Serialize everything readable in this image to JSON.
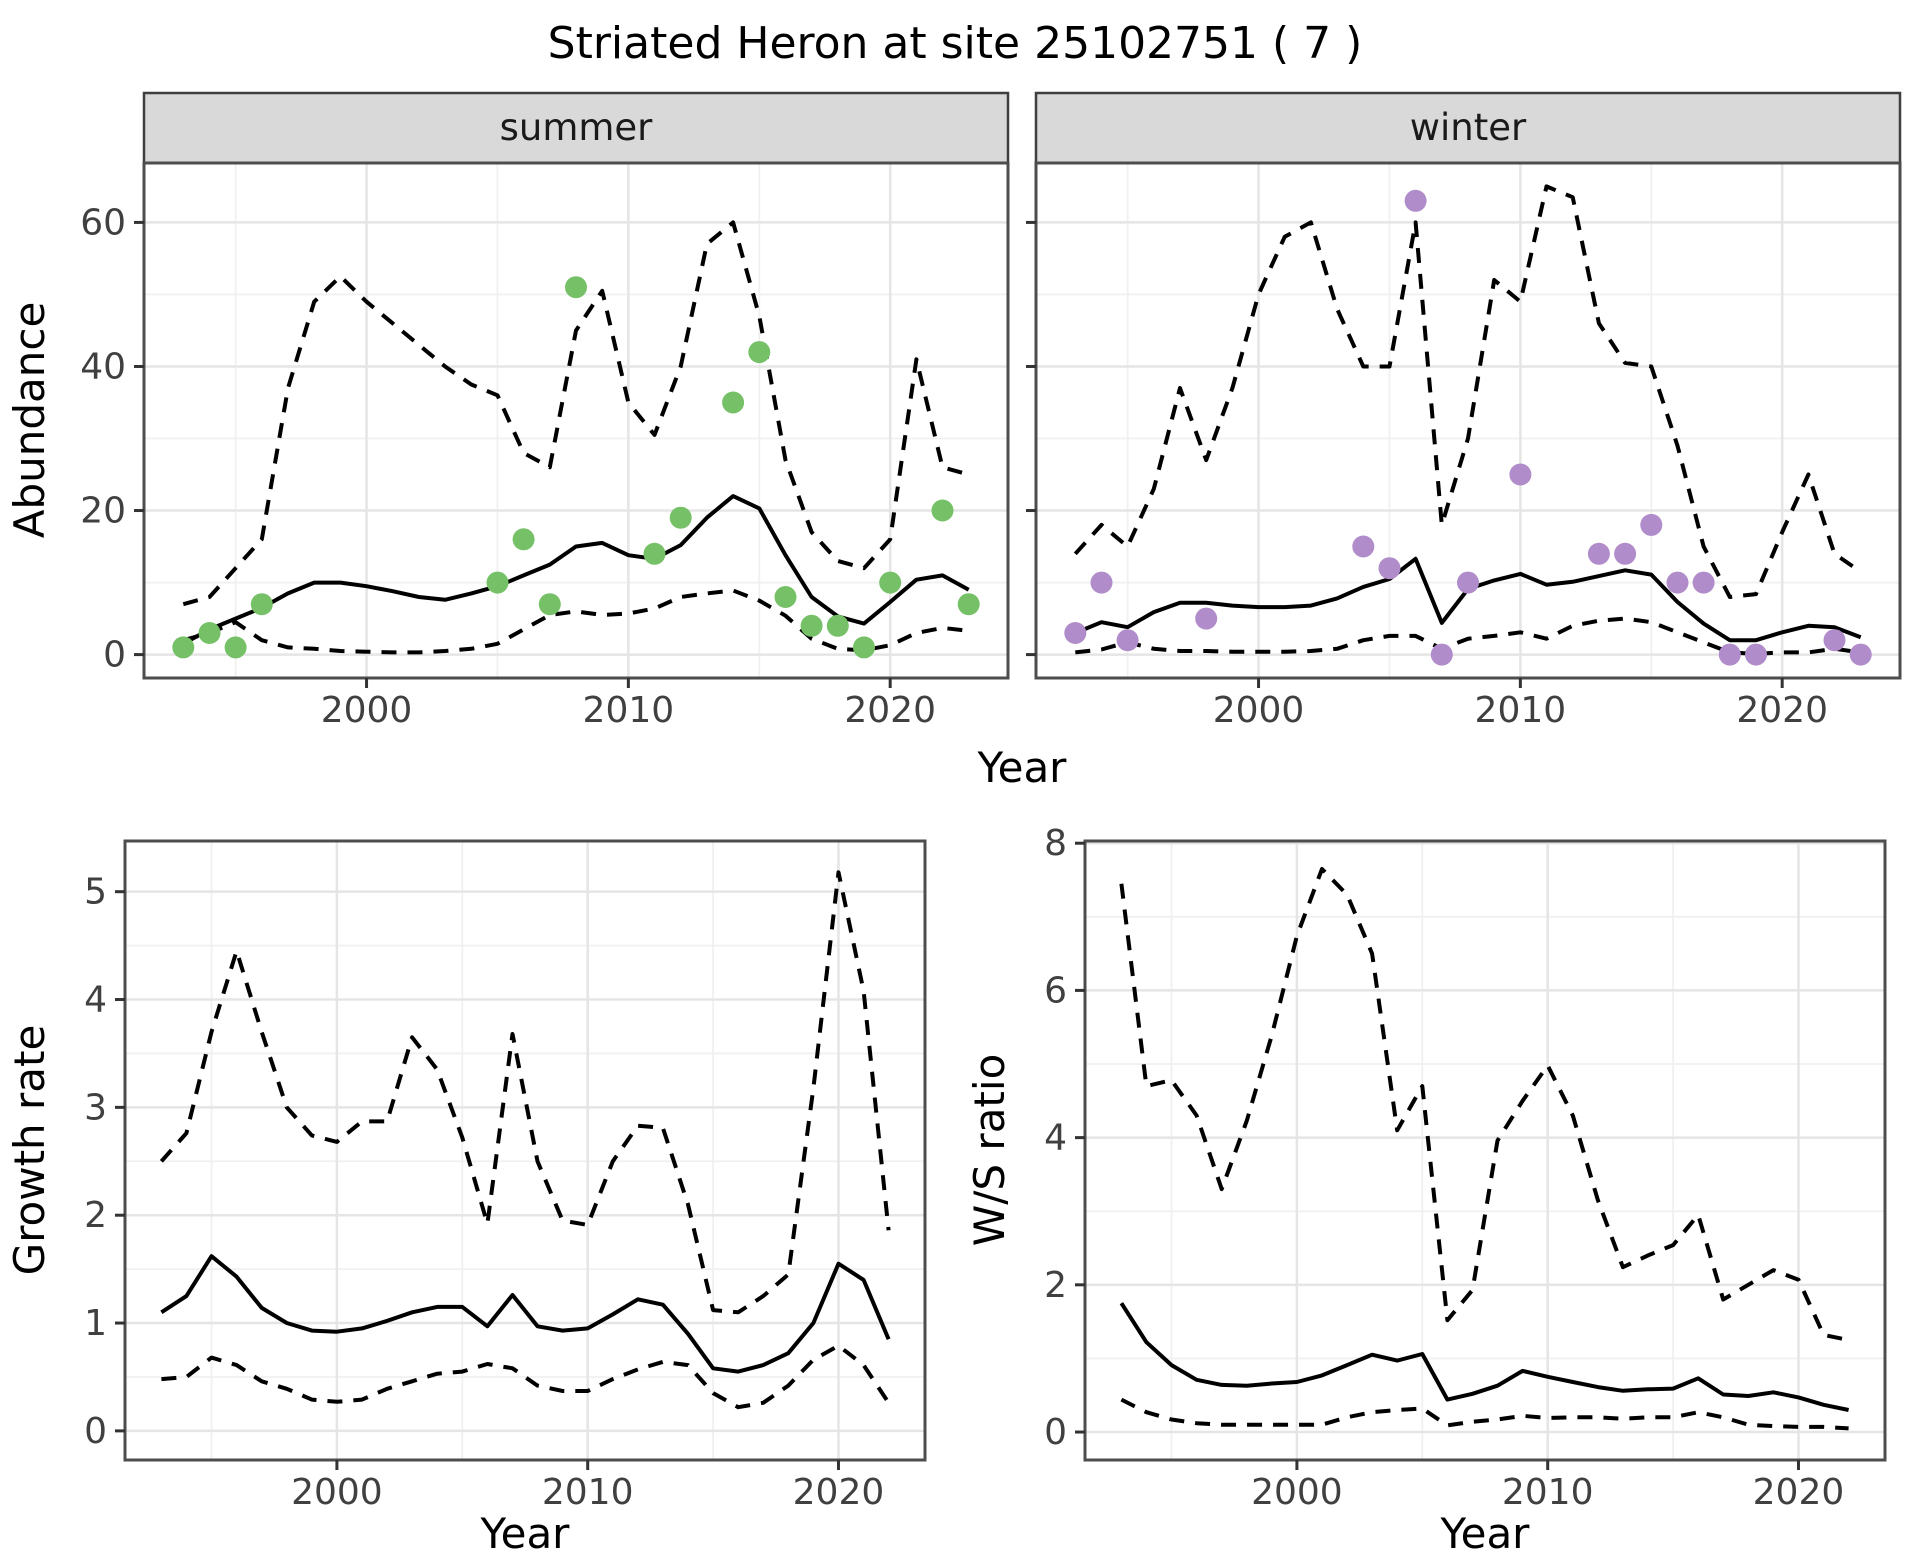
{
  "title": "Striated Heron at site 25102751 ( 7 )",
  "facets": {
    "summer": "summer",
    "winter": "winter"
  },
  "axis_titles": {
    "abundance": "Abundance",
    "growth_rate": "Growth rate",
    "ws_ratio": "W/S ratio",
    "year_top": "Year",
    "year_bottom_left": "Year",
    "year_bottom_right": "Year"
  },
  "colors": {
    "summer_point": "#76c167",
    "winter_point": "#b18cca",
    "line": "#000000",
    "strip_fill": "#d9d9d9",
    "strip_border": "#3f3f3f",
    "panel_border": "#4d4d4d",
    "grid_major": "#e5e5e5",
    "grid_minor": "#f0f0f0",
    "tick_label": "#404040",
    "tick_mark": "#333333"
  },
  "chart_data": [
    {
      "id": "abundance-summer",
      "type": "line",
      "facet_label": "summer",
      "xlabel": "Year",
      "ylabel": "Abundance",
      "xlim": [
        1991.5,
        2024.5
      ],
      "ylim": [
        -3.25,
        68.25
      ],
      "x_ticks": [
        2000,
        2010,
        2020
      ],
      "y_ticks": [
        0,
        20,
        40,
        60
      ],
      "x": [
        1993,
        1994,
        1995,
        1996,
        1997,
        1998,
        1999,
        2000,
        2001,
        2002,
        2003,
        2004,
        2005,
        2006,
        2007,
        2008,
        2009,
        2010,
        2011,
        2012,
        2013,
        2014,
        2015,
        2016,
        2017,
        2018,
        2019,
        2020,
        2021,
        2022,
        2023
      ],
      "series": [
        {
          "name": "median",
          "style": "solid",
          "values": [
            1.5,
            3.5,
            5,
            6.5,
            8.5,
            10,
            10,
            9.5,
            8.8,
            8,
            7.6,
            8.5,
            9.5,
            11,
            12.5,
            15,
            15.5,
            13.8,
            13.3,
            15.2,
            19,
            22,
            20.3,
            13.8,
            8,
            5.3,
            4.3,
            7.3,
            10.4,
            11,
            9
          ]
        },
        {
          "name": "upper-ci",
          "style": "dashed",
          "values": [
            7,
            8,
            12,
            16,
            37,
            49,
            52.5,
            49,
            46,
            43,
            40,
            37.5,
            36,
            28,
            26,
            45,
            50.5,
            35,
            30.5,
            40,
            57,
            60,
            47,
            27,
            17,
            13,
            12,
            16,
            41,
            26,
            25
          ]
        },
        {
          "name": "lower-ci",
          "style": "dashed",
          "values": [
            2,
            3,
            4.5,
            2,
            1,
            0.8,
            0.5,
            0.4,
            0.3,
            0.3,
            0.5,
            0.8,
            1.5,
            3.5,
            5.5,
            6,
            5.5,
            5.7,
            6.4,
            8,
            8.5,
            8.9,
            7.5,
            5.4,
            2.2,
            0.8,
            0.6,
            1.3,
            3,
            3.7,
            3.3
          ]
        }
      ],
      "points": {
        "name": "observed-abundance-summer",
        "color": "#76c167",
        "x": [
          1993,
          1994,
          1995,
          1996,
          2005,
          2006,
          2007,
          2008,
          2011,
          2012,
          2014,
          2015,
          2016,
          2017,
          2018,
          2019,
          2020,
          2022,
          2023
        ],
        "y": [
          1,
          3,
          1,
          7,
          10,
          16,
          7,
          51,
          14,
          19,
          35,
          42,
          8,
          4,
          4,
          1,
          10,
          20,
          7
        ]
      }
    },
    {
      "id": "abundance-winter",
      "type": "line",
      "facet_label": "winter",
      "xlabel": "Year",
      "ylabel": "Abundance",
      "xlim": [
        1991.5,
        2024.5
      ],
      "ylim": [
        -3.25,
        68.25
      ],
      "x_ticks": [
        2000,
        2010,
        2020
      ],
      "y_ticks": [
        0,
        20,
        40,
        60
      ],
      "x": [
        1993,
        1994,
        1995,
        1996,
        1997,
        1998,
        1999,
        2000,
        2001,
        2002,
        2003,
        2004,
        2005,
        2006,
        2007,
        2008,
        2009,
        2010,
        2011,
        2012,
        2013,
        2014,
        2015,
        2016,
        2017,
        2018,
        2019,
        2020,
        2021,
        2022,
        2023
      ],
      "series": [
        {
          "name": "median",
          "style": "solid",
          "values": [
            3,
            4.5,
            3.8,
            5.9,
            7.2,
            7.2,
            6.8,
            6.6,
            6.6,
            6.8,
            7.8,
            9.4,
            10.5,
            13.3,
            4.4,
            9.1,
            10.3,
            11.2,
            9.7,
            10.1,
            10.9,
            11.7,
            11.1,
            7.3,
            4.3,
            2,
            2,
            3.1,
            4,
            3.8,
            2.4
          ]
        },
        {
          "name": "upper-ci",
          "style": "dashed",
          "values": [
            14,
            18,
            15,
            23,
            37,
            27,
            37,
            50,
            58,
            60,
            48,
            40,
            40,
            60,
            18,
            30,
            52,
            49,
            65,
            63.5,
            46,
            40.5,
            40,
            29,
            15,
            8,
            8.4,
            17,
            25,
            14,
            11.5
          ]
        },
        {
          "name": "lower-ci",
          "style": "dashed",
          "values": [
            0.3,
            0.7,
            1.7,
            0.8,
            0.5,
            0.5,
            0.4,
            0.4,
            0.4,
            0.5,
            0.8,
            2,
            2.6,
            2.6,
            0.8,
            2.2,
            2.6,
            3.1,
            2.2,
            4,
            4.7,
            5,
            4.5,
            3.1,
            1.7,
            0.3,
            0.1,
            0.3,
            0.3,
            0.8,
            0.3
          ]
        }
      ],
      "points": {
        "name": "observed-abundance-winter",
        "color": "#b18cca",
        "x": [
          1993,
          1994,
          1995,
          1998,
          2004,
          2005,
          2006,
          2007,
          2008,
          2010,
          2013,
          2014,
          2015,
          2016,
          2017,
          2018,
          2019,
          2022,
          2023
        ],
        "y": [
          3,
          10,
          2,
          5,
          15,
          12,
          63,
          0,
          10,
          25,
          14,
          14,
          18,
          10,
          10,
          0,
          0,
          2,
          0
        ]
      }
    },
    {
      "id": "growth-rate",
      "type": "line",
      "facet_label": "",
      "xlabel": "Year",
      "ylabel": "Growth rate",
      "xlim": [
        1991.55,
        2023.45
      ],
      "ylim": [
        -0.27,
        5.47
      ],
      "x_ticks": [
        2000,
        2010,
        2020
      ],
      "y_ticks": [
        0,
        1,
        2,
        3,
        4,
        5
      ],
      "x": [
        1993,
        1994,
        1995,
        1996,
        1997,
        1998,
        1999,
        2000,
        2001,
        2002,
        2003,
        2004,
        2005,
        2006,
        2007,
        2008,
        2009,
        2010,
        2011,
        2012,
        2013,
        2014,
        2015,
        2016,
        2017,
        2018,
        2019,
        2020,
        2021,
        2022
      ],
      "series": [
        {
          "name": "median",
          "style": "solid",
          "values": [
            1.1,
            1.25,
            1.62,
            1.43,
            1.14,
            1.0,
            0.93,
            0.92,
            0.95,
            1.02,
            1.1,
            1.15,
            1.15,
            0.97,
            1.26,
            0.97,
            0.93,
            0.95,
            1.08,
            1.22,
            1.17,
            0.9,
            0.58,
            0.55,
            0.61,
            0.72,
            1.0,
            1.55,
            1.4,
            0.85
          ]
        },
        {
          "name": "upper-ci",
          "style": "dashed",
          "values": [
            2.5,
            2.76,
            3.7,
            4.45,
            3.7,
            3.0,
            2.74,
            2.68,
            2.87,
            2.87,
            3.65,
            3.35,
            2.72,
            1.92,
            3.68,
            2.5,
            1.95,
            1.91,
            2.5,
            2.83,
            2.81,
            2.1,
            1.12,
            1.1,
            1.25,
            1.45,
            3.18,
            5.18,
            4.08,
            1.86
          ]
        },
        {
          "name": "lower-ci",
          "style": "dashed",
          "values": [
            0.48,
            0.5,
            0.68,
            0.61,
            0.46,
            0.39,
            0.29,
            0.27,
            0.29,
            0.39,
            0.46,
            0.53,
            0.55,
            0.62,
            0.58,
            0.42,
            0.37,
            0.37,
            0.48,
            0.57,
            0.64,
            0.61,
            0.35,
            0.22,
            0.26,
            0.42,
            0.66,
            0.79,
            0.61,
            0.26
          ]
        }
      ]
    },
    {
      "id": "ws-ratio",
      "type": "line",
      "facet_label": "",
      "xlabel": "Year",
      "ylabel": "W/S ratio",
      "xlim": [
        1991.55,
        2023.45
      ],
      "ylim": [
        -0.38,
        8.03
      ],
      "x_ticks": [
        2000,
        2010,
        2020
      ],
      "y_ticks": [
        0,
        2,
        4,
        6,
        8
      ],
      "x": [
        1993,
        1994,
        1995,
        1996,
        1997,
        1998,
        1999,
        2000,
        2001,
        2002,
        2003,
        2004,
        2005,
        2006,
        2007,
        2008,
        2009,
        2010,
        2011,
        2012,
        2013,
        2014,
        2015,
        2016,
        2017,
        2018,
        2019,
        2020,
        2021,
        2022
      ],
      "series": [
        {
          "name": "median",
          "style": "solid",
          "values": [
            1.75,
            1.22,
            0.91,
            0.71,
            0.64,
            0.63,
            0.66,
            0.68,
            0.77,
            0.91,
            1.05,
            0.97,
            1.06,
            0.44,
            0.52,
            0.63,
            0.83,
            0.75,
            0.68,
            0.61,
            0.56,
            0.58,
            0.59,
            0.73,
            0.51,
            0.49,
            0.54,
            0.47,
            0.37,
            0.3
          ]
        },
        {
          "name": "upper-ci",
          "style": "dashed",
          "values": [
            7.45,
            4.7,
            4.78,
            4.3,
            3.3,
            4.23,
            5.39,
            6.74,
            7.65,
            7.3,
            6.5,
            4.1,
            4.7,
            1.52,
            1.93,
            3.96,
            4.5,
            4.98,
            4.3,
            3.15,
            2.24,
            2.4,
            2.54,
            2.95,
            1.8,
            2.0,
            2.2,
            2.07,
            1.32,
            1.25
          ]
        },
        {
          "name": "lower-ci",
          "style": "dashed",
          "values": [
            0.44,
            0.27,
            0.17,
            0.12,
            0.1,
            0.1,
            0.1,
            0.1,
            0.1,
            0.2,
            0.27,
            0.3,
            0.32,
            0.09,
            0.14,
            0.17,
            0.22,
            0.19,
            0.2,
            0.2,
            0.18,
            0.2,
            0.2,
            0.27,
            0.2,
            0.1,
            0.08,
            0.07,
            0.07,
            0.05
          ]
        }
      ]
    }
  ]
}
